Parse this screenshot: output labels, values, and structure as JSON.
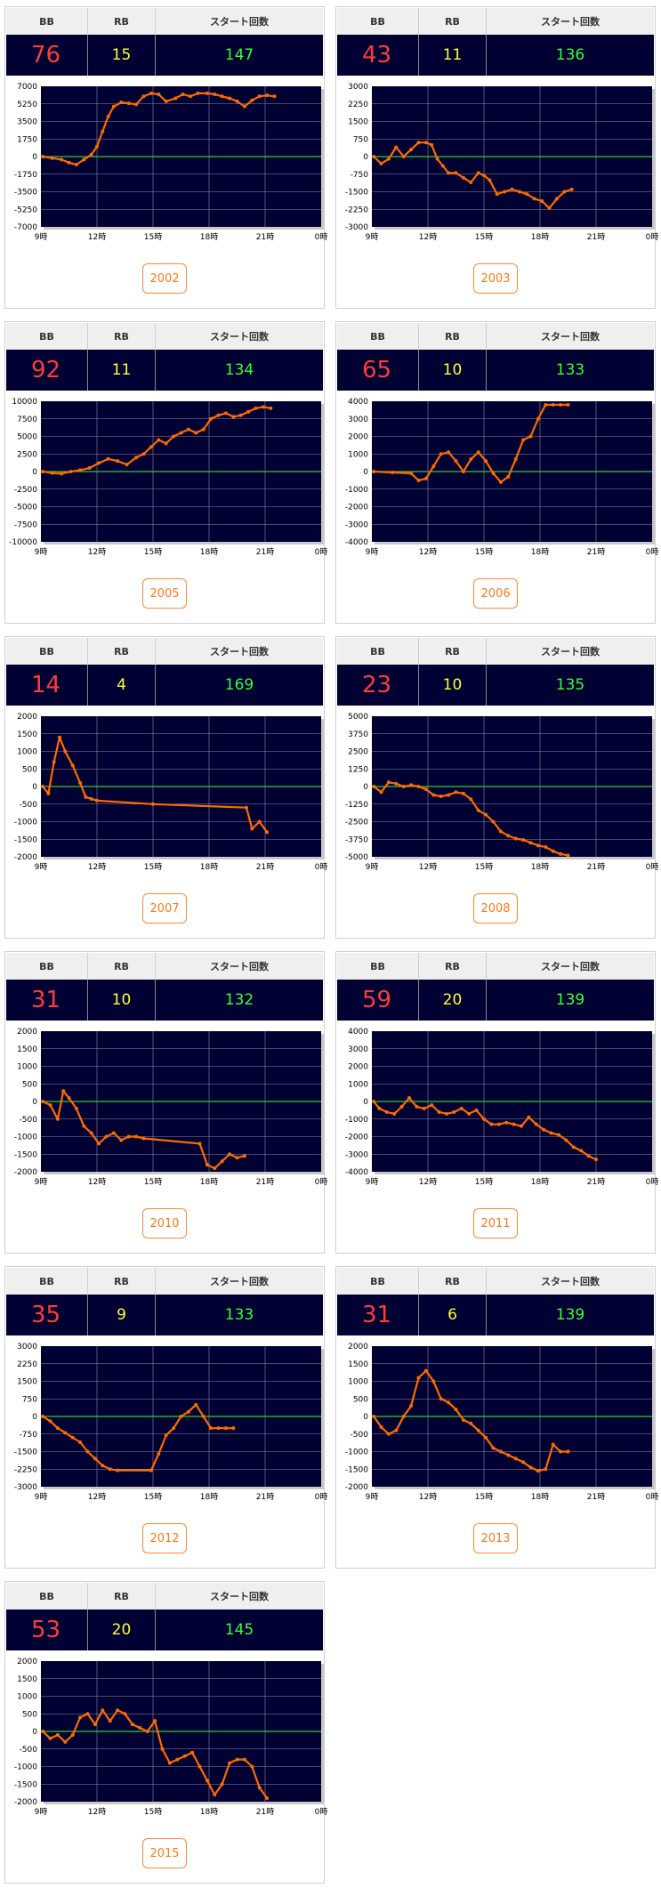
{
  "headers": {
    "bb": "BB",
    "rb": "RB",
    "start": "スタート回数"
  },
  "x_tick_labels": [
    "9時",
    "12時",
    "15時",
    "18時",
    "21時",
    "0時"
  ],
  "colors": {
    "plot_bg": "#000033",
    "line": "#ff6a00",
    "zero_line": "#33cc33",
    "bb": "#ff3b3b",
    "rb": "#ffff33",
    "start": "#33ff33",
    "button": "#ff7a1a"
  },
  "cards": [
    {
      "bb": "76",
      "rb": "15",
      "start": "147",
      "button_label": "2002",
      "chart_data": {
        "type": "line",
        "xlim": [
          9,
          24
        ],
        "ylim": [
          -7000,
          7000
        ],
        "yticks": [
          "7000",
          "5250",
          "3500",
          "1750",
          "0",
          "-1750",
          "-3500",
          "-5250",
          "-7000"
        ],
        "x": [
          9.1,
          9.6,
          10.1,
          10.5,
          10.9,
          11.3,
          11.7,
          12.0,
          12.3,
          12.6,
          12.9,
          13.3,
          13.7,
          14.1,
          14.5,
          14.9,
          15.3,
          15.7,
          16.2,
          16.6,
          17.0,
          17.4,
          17.9,
          18.3,
          18.7,
          19.1,
          19.5,
          19.9,
          20.3,
          20.7,
          21.1,
          21.5
        ],
        "y": [
          0,
          -150,
          -300,
          -600,
          -800,
          -300,
          200,
          1000,
          2500,
          4000,
          5000,
          5400,
          5300,
          5200,
          6000,
          6300,
          6200,
          5500,
          5800,
          6200,
          6000,
          6300,
          6300,
          6200,
          6000,
          5800,
          5500,
          5000,
          5600,
          6000,
          6100,
          6000
        ]
      }
    },
    {
      "bb": "43",
      "rb": "11",
      "start": "136",
      "button_label": "2003",
      "chart_data": {
        "type": "line",
        "xlim": [
          9,
          24
        ],
        "ylim": [
          -3000,
          3000
        ],
        "yticks": [
          "3000",
          "2250",
          "1500",
          "750",
          "0",
          "-750",
          "-1500",
          "-2250",
          "-3000"
        ],
        "x": [
          9.1,
          9.5,
          9.9,
          10.3,
          10.7,
          11.1,
          11.5,
          11.9,
          12.2,
          12.5,
          12.8,
          13.1,
          13.5,
          13.9,
          14.3,
          14.7,
          15.0,
          15.3,
          15.7,
          16.1,
          16.5,
          16.9,
          17.3,
          17.7,
          18.1,
          18.5,
          18.9,
          19.3,
          19.7
        ],
        "y": [
          0,
          -300,
          -100,
          400,
          0,
          300,
          600,
          600,
          500,
          -100,
          -400,
          -700,
          -700,
          -900,
          -1100,
          -700,
          -800,
          -1000,
          -1600,
          -1500,
          -1400,
          -1500,
          -1600,
          -1800,
          -1900,
          -2200,
          -1800,
          -1500,
          -1400
        ]
      }
    },
    {
      "bb": "92",
      "rb": "11",
      "start": "134",
      "button_label": "2005",
      "chart_data": {
        "type": "line",
        "xlim": [
          9,
          24
        ],
        "ylim": [
          -10000,
          10000
        ],
        "yticks": [
          "10000",
          "7500",
          "5000",
          "2500",
          "0",
          "-2500",
          "-5000",
          "-7500",
          "-10000"
        ],
        "x": [
          9.1,
          9.6,
          10.1,
          10.6,
          11.1,
          11.6,
          12.1,
          12.6,
          13.1,
          13.6,
          14.1,
          14.5,
          14.9,
          15.3,
          15.7,
          16.1,
          16.5,
          16.9,
          17.3,
          17.7,
          18.1,
          18.5,
          18.9,
          19.3,
          19.7,
          20.1,
          20.5,
          20.9,
          21.3
        ],
        "y": [
          0,
          -200,
          -300,
          0,
          200,
          500,
          1200,
          1800,
          1500,
          1000,
          2000,
          2500,
          3500,
          4500,
          4000,
          5000,
          5500,
          6000,
          5500,
          6000,
          7500,
          8000,
          8300,
          7800,
          8000,
          8500,
          9000,
          9200,
          9000
        ]
      }
    },
    {
      "bb": "65",
      "rb": "10",
      "start": "133",
      "button_label": "2006",
      "chart_data": {
        "type": "line",
        "xlim": [
          9,
          24
        ],
        "ylim": [
          -4000,
          4000
        ],
        "yticks": [
          "4000",
          "3000",
          "2000",
          "1000",
          "0",
          "-1000",
          "-2000",
          "-3000",
          "-4000"
        ],
        "x": [
          9.1,
          10.1,
          11.1,
          11.5,
          11.9,
          12.3,
          12.7,
          13.1,
          13.5,
          13.9,
          14.3,
          14.7,
          15.1,
          15.5,
          15.9,
          16.3,
          16.7,
          17.1,
          17.5,
          17.9,
          18.3,
          18.7,
          19.1,
          19.5
        ],
        "y": [
          0,
          -50,
          -100,
          -500,
          -400,
          300,
          1000,
          1100,
          600,
          0,
          700,
          1100,
          600,
          -100,
          -600,
          -300,
          700,
          1800,
          2000,
          3000,
          3800,
          3800,
          3800,
          3800
        ]
      }
    },
    {
      "bb": "14",
      "rb": "4",
      "start": "169",
      "button_label": "2007",
      "chart_data": {
        "type": "line",
        "xlim": [
          9,
          24
        ],
        "ylim": [
          -2000,
          2000
        ],
        "yticks": [
          "2000",
          "1500",
          "1000",
          "500",
          "0",
          "-500",
          "-1000",
          "-1500",
          "-2000"
        ],
        "x": [
          9.1,
          9.4,
          9.7,
          10.0,
          10.3,
          10.7,
          11.1,
          11.4,
          11.7,
          12.0,
          15.0,
          20.0,
          20.3,
          20.7,
          21.1
        ],
        "y": [
          0,
          -200,
          700,
          1400,
          1000,
          600,
          100,
          -300,
          -350,
          -400,
          -500,
          -600,
          -1200,
          -1000,
          -1300
        ]
      }
    },
    {
      "bb": "23",
      "rb": "10",
      "start": "135",
      "button_label": "2008",
      "chart_data": {
        "type": "line",
        "xlim": [
          9,
          24
        ],
        "ylim": [
          -5000,
          5000
        ],
        "yticks": [
          "5000",
          "3750",
          "2500",
          "1250",
          "0",
          "-1250",
          "-2500",
          "-3750",
          "-5000"
        ],
        "x": [
          9.1,
          9.5,
          9.9,
          10.3,
          10.7,
          11.1,
          11.5,
          11.9,
          12.3,
          12.7,
          13.1,
          13.5,
          13.9,
          14.3,
          14.7,
          15.1,
          15.5,
          15.9,
          16.3,
          16.7,
          17.1,
          17.5,
          17.9,
          18.3,
          18.7,
          19.1,
          19.5
        ],
        "y": [
          0,
          -400,
          300,
          200,
          0,
          100,
          0,
          -200,
          -600,
          -700,
          -600,
          -400,
          -500,
          -900,
          -1700,
          -2000,
          -2500,
          -3200,
          -3500,
          -3700,
          -3800,
          -4000,
          -4200,
          -4300,
          -4600,
          -4800,
          -4900
        ]
      }
    },
    {
      "bb": "31",
      "rb": "10",
      "start": "132",
      "button_label": "2010",
      "chart_data": {
        "type": "line",
        "xlim": [
          9,
          24
        ],
        "ylim": [
          -2000,
          2000
        ],
        "yticks": [
          "2000",
          "1500",
          "1000",
          "500",
          "0",
          "-500",
          "-1000",
          "-1500",
          "-2000"
        ],
        "x": [
          9.1,
          9.5,
          9.9,
          10.2,
          10.5,
          10.9,
          11.3,
          11.7,
          12.1,
          12.5,
          12.9,
          13.3,
          13.7,
          14.1,
          14.5,
          17.5,
          17.9,
          18.3,
          18.7,
          19.1,
          19.5,
          19.9
        ],
        "y": [
          0,
          -100,
          -500,
          300,
          100,
          -200,
          -700,
          -900,
          -1200,
          -1000,
          -900,
          -1100,
          -1000,
          -1000,
          -1050,
          -1200,
          -1800,
          -1900,
          -1700,
          -1500,
          -1600,
          -1550
        ]
      }
    },
    {
      "bb": "59",
      "rb": "20",
      "start": "139",
      "button_label": "2011",
      "chart_data": {
        "type": "line",
        "xlim": [
          9,
          24
        ],
        "ylim": [
          -4000,
          4000
        ],
        "yticks": [
          "4000",
          "3000",
          "2000",
          "1000",
          "0",
          "-1000",
          "-2000",
          "-3000",
          "-4000"
        ],
        "x": [
          9.1,
          9.4,
          9.8,
          10.2,
          10.6,
          11.0,
          11.4,
          11.8,
          12.2,
          12.6,
          13.0,
          13.4,
          13.8,
          14.2,
          14.6,
          15.0,
          15.4,
          15.8,
          16.2,
          16.6,
          17.0,
          17.4,
          17.8,
          18.2,
          18.6,
          19.0,
          19.4,
          19.8,
          20.2,
          20.6,
          21.0
        ],
        "y": [
          0,
          -400,
          -600,
          -700,
          -300,
          200,
          -300,
          -400,
          -200,
          -600,
          -700,
          -600,
          -400,
          -700,
          -500,
          -1000,
          -1300,
          -1300,
          -1200,
          -1300,
          -1400,
          -900,
          -1300,
          -1600,
          -1800,
          -1900,
          -2200,
          -2600,
          -2800,
          -3100,
          -3300
        ]
      }
    },
    {
      "bb": "35",
      "rb": "9",
      "start": "133",
      "button_label": "2012",
      "chart_data": {
        "type": "line",
        "xlim": [
          9,
          24
        ],
        "ylim": [
          -3000,
          3000
        ],
        "yticks": [
          "3000",
          "2250",
          "1500",
          "750",
          "0",
          "-750",
          "-1500",
          "-2250",
          "-3000"
        ],
        "x": [
          9.1,
          9.5,
          9.9,
          10.3,
          10.7,
          11.1,
          11.5,
          11.9,
          12.3,
          12.7,
          13.1,
          14.9,
          15.3,
          15.7,
          16.1,
          16.5,
          16.9,
          17.3,
          17.7,
          18.1,
          18.5,
          18.9,
          19.3
        ],
        "y": [
          0,
          -200,
          -500,
          -700,
          -900,
          -1100,
          -1500,
          -1800,
          -2100,
          -2250,
          -2300,
          -2300,
          -1600,
          -800,
          -500,
          0,
          200,
          500,
          0,
          -500,
          -500,
          -500,
          -500
        ]
      }
    },
    {
      "bb": "31",
      "rb": "6",
      "start": "139",
      "button_label": "2013",
      "chart_data": {
        "type": "line",
        "xlim": [
          9,
          24
        ],
        "ylim": [
          -2000,
          2000
        ],
        "yticks": [
          "2000",
          "1500",
          "1000",
          "500",
          "0",
          "-500",
          "-1000",
          "-1500",
          "-2000"
        ],
        "x": [
          9.1,
          9.5,
          9.9,
          10.3,
          10.7,
          11.1,
          11.5,
          11.9,
          12.3,
          12.7,
          13.1,
          13.5,
          13.9,
          14.3,
          14.7,
          15.1,
          15.5,
          15.9,
          16.3,
          16.7,
          17.1,
          17.5,
          17.9,
          18.3,
          18.7,
          19.1,
          19.5
        ],
        "y": [
          0,
          -300,
          -500,
          -400,
          0,
          300,
          1100,
          1300,
          1000,
          500,
          400,
          200,
          -100,
          -200,
          -400,
          -600,
          -900,
          -1000,
          -1100,
          -1200,
          -1300,
          -1450,
          -1550,
          -1500,
          -800,
          -1000,
          -1000
        ]
      }
    },
    {
      "bb": "53",
      "rb": "20",
      "start": "145",
      "button_label": "2015",
      "chart_data": {
        "type": "line",
        "xlim": [
          9,
          24
        ],
        "ylim": [
          -2000,
          2000
        ],
        "yticks": [
          "2000",
          "1500",
          "1000",
          "500",
          "0",
          "-500",
          "-1000",
          "-1500",
          "-2000"
        ],
        "x": [
          9.1,
          9.5,
          9.9,
          10.3,
          10.7,
          11.1,
          11.5,
          11.9,
          12.3,
          12.7,
          13.1,
          13.5,
          13.9,
          14.3,
          14.7,
          15.1,
          15.5,
          15.9,
          16.3,
          16.7,
          17.1,
          17.5,
          17.9,
          18.3,
          18.7,
          19.1,
          19.5,
          19.9,
          20.3,
          20.7,
          21.1
        ],
        "y": [
          0,
          -200,
          -100,
          -300,
          -100,
          400,
          500,
          200,
          600,
          300,
          600,
          500,
          200,
          100,
          0,
          300,
          -500,
          -900,
          -800,
          -700,
          -600,
          -1000,
          -1400,
          -1800,
          -1500,
          -900,
          -800,
          -800,
          -1000,
          -1600,
          -1900
        ]
      }
    }
  ]
}
